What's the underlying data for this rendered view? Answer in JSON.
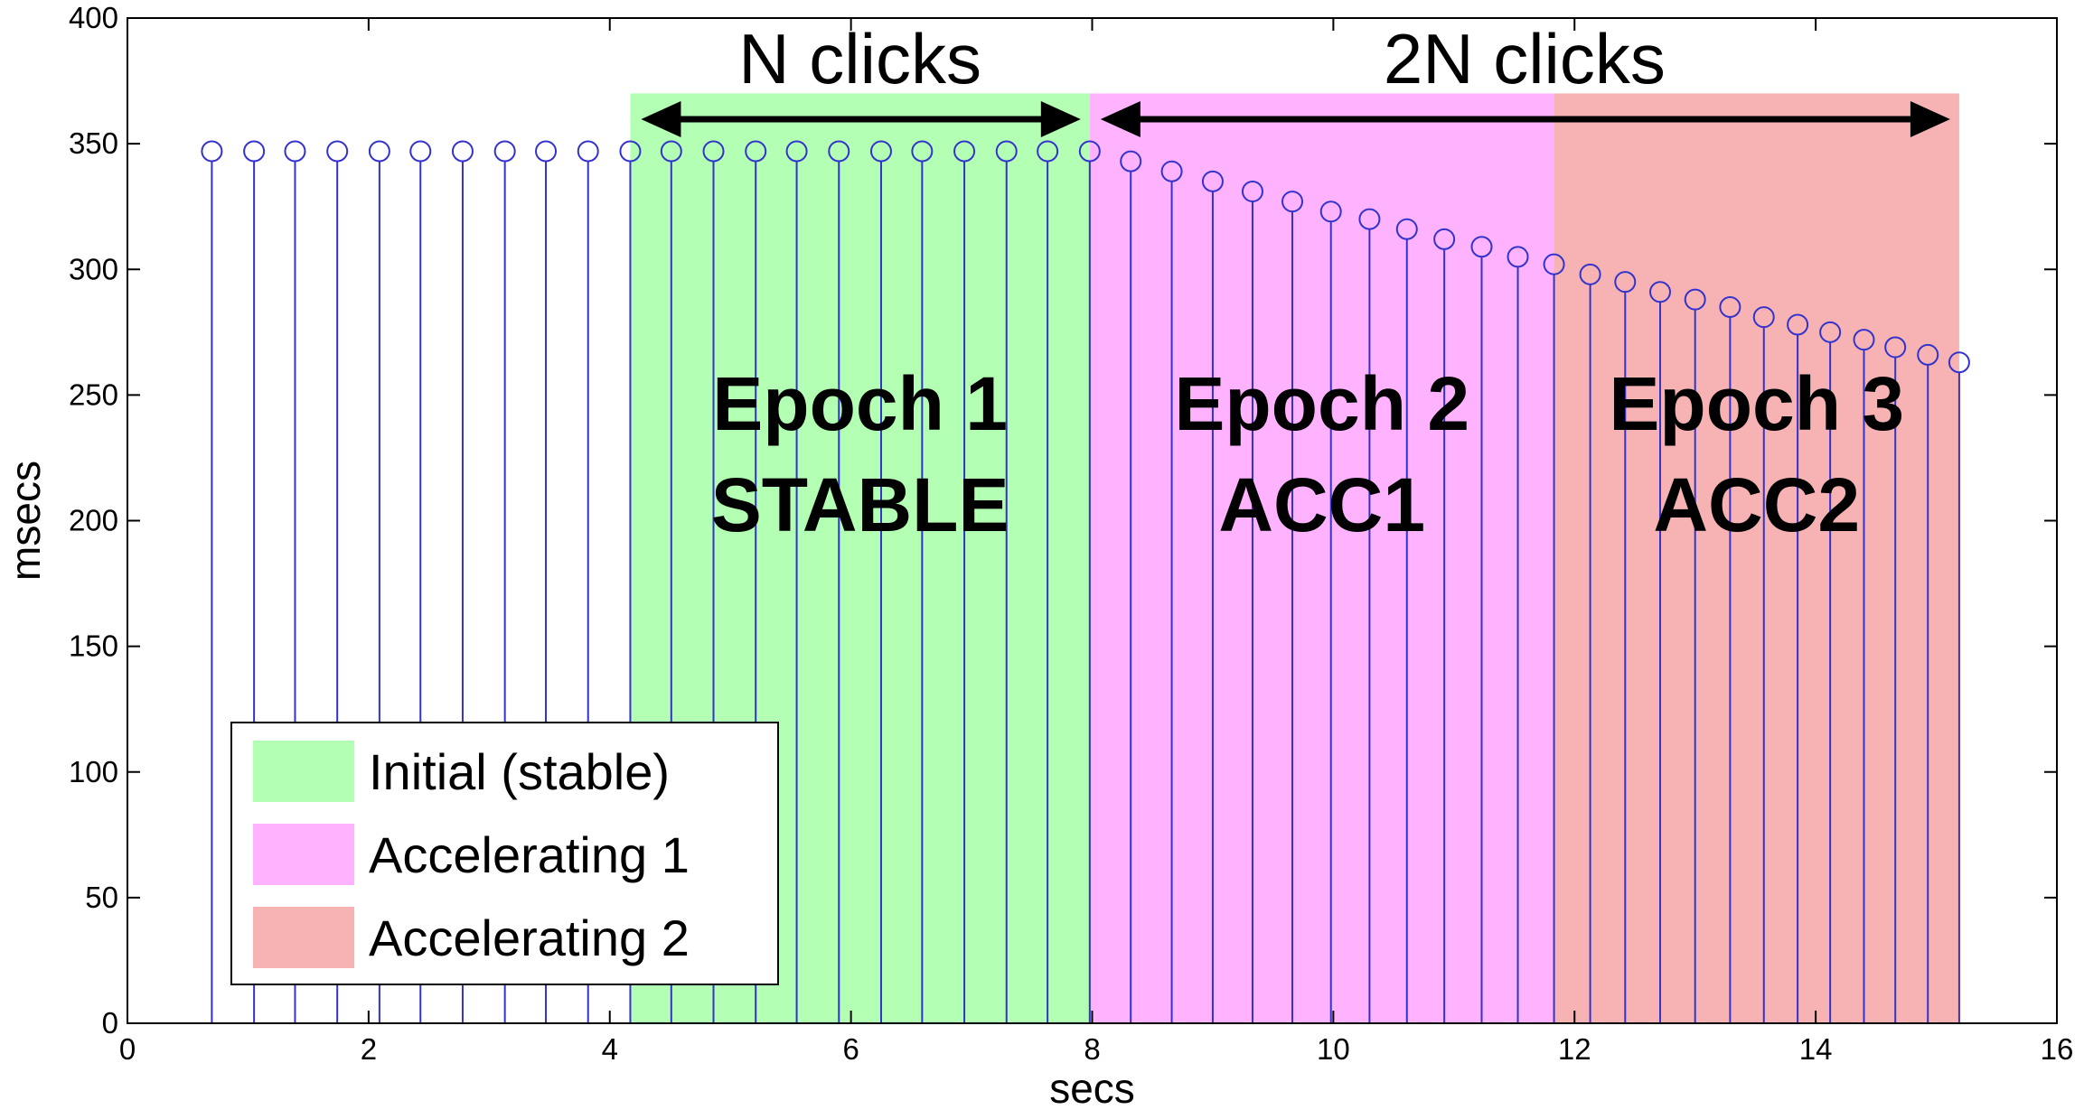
{
  "chart_data": {
    "type": "stem",
    "xlabel": "secs",
    "ylabel": "msecs",
    "xlim": [
      0,
      16
    ],
    "ylim": [
      0,
      400
    ],
    "xticks": [
      "0",
      "2",
      "4",
      "6",
      "8",
      "10",
      "12",
      "14",
      "16"
    ],
    "yticks": [
      "0",
      "50",
      "100",
      "150",
      "200",
      "250",
      "300",
      "350",
      "400"
    ],
    "grid": false,
    "stem_color": "#3333cc",
    "x": [
      0.7,
      1.05,
      1.39,
      1.74,
      2.09,
      2.43,
      2.78,
      3.13,
      3.47,
      3.82,
      4.17,
      4.51,
      4.86,
      5.21,
      5.55,
      5.9,
      6.25,
      6.59,
      6.94,
      7.29,
      7.63,
      7.98,
      8.32,
      8.66,
      9.0,
      9.33,
      9.66,
      9.98,
      10.3,
      10.61,
      10.92,
      11.23,
      11.53,
      11.83,
      12.13,
      12.42,
      12.71,
      13.0,
      13.29,
      13.57,
      13.85,
      14.12,
      14.4,
      14.66,
      14.93,
      15.19
    ],
    "values": [
      347,
      347,
      347,
      347,
      347,
      347,
      347,
      347,
      347,
      347,
      347,
      347,
      347,
      347,
      347,
      347,
      347,
      347,
      347,
      347,
      347,
      347,
      343,
      339,
      335,
      331,
      327,
      323,
      320,
      316,
      312,
      309,
      305,
      302,
      298,
      295,
      291,
      288,
      285,
      281,
      278,
      275,
      272,
      269,
      266,
      263
    ],
    "regions": [
      {
        "label": "Initial (stable)",
        "x0": 4.17,
        "x1": 7.98,
        "color": "#b3ffb3"
      },
      {
        "label": "Accelerating 1",
        "x0": 7.98,
        "x1": 11.83,
        "color": "#ffb3ff"
      },
      {
        "label": "Accelerating 2",
        "x0": 11.83,
        "x1": 15.19,
        "color": "#f7b3b3"
      }
    ],
    "epochs": [
      {
        "line1": "Epoch 1",
        "line2": "STABLE"
      },
      {
        "line1": "Epoch 2",
        "line2": "ACC1"
      },
      {
        "line1": "Epoch 3",
        "line2": "ACC2"
      }
    ],
    "annotations": [
      {
        "text": "N clicks",
        "x0": 4.17,
        "x1": 7.98
      },
      {
        "text": "2N clicks",
        "x0": 7.98,
        "x1": 15.19
      }
    ],
    "legend": {
      "position": "bottom-left",
      "entries": [
        "Initial (stable)",
        "Accelerating 1",
        "Accelerating 2"
      ]
    }
  }
}
